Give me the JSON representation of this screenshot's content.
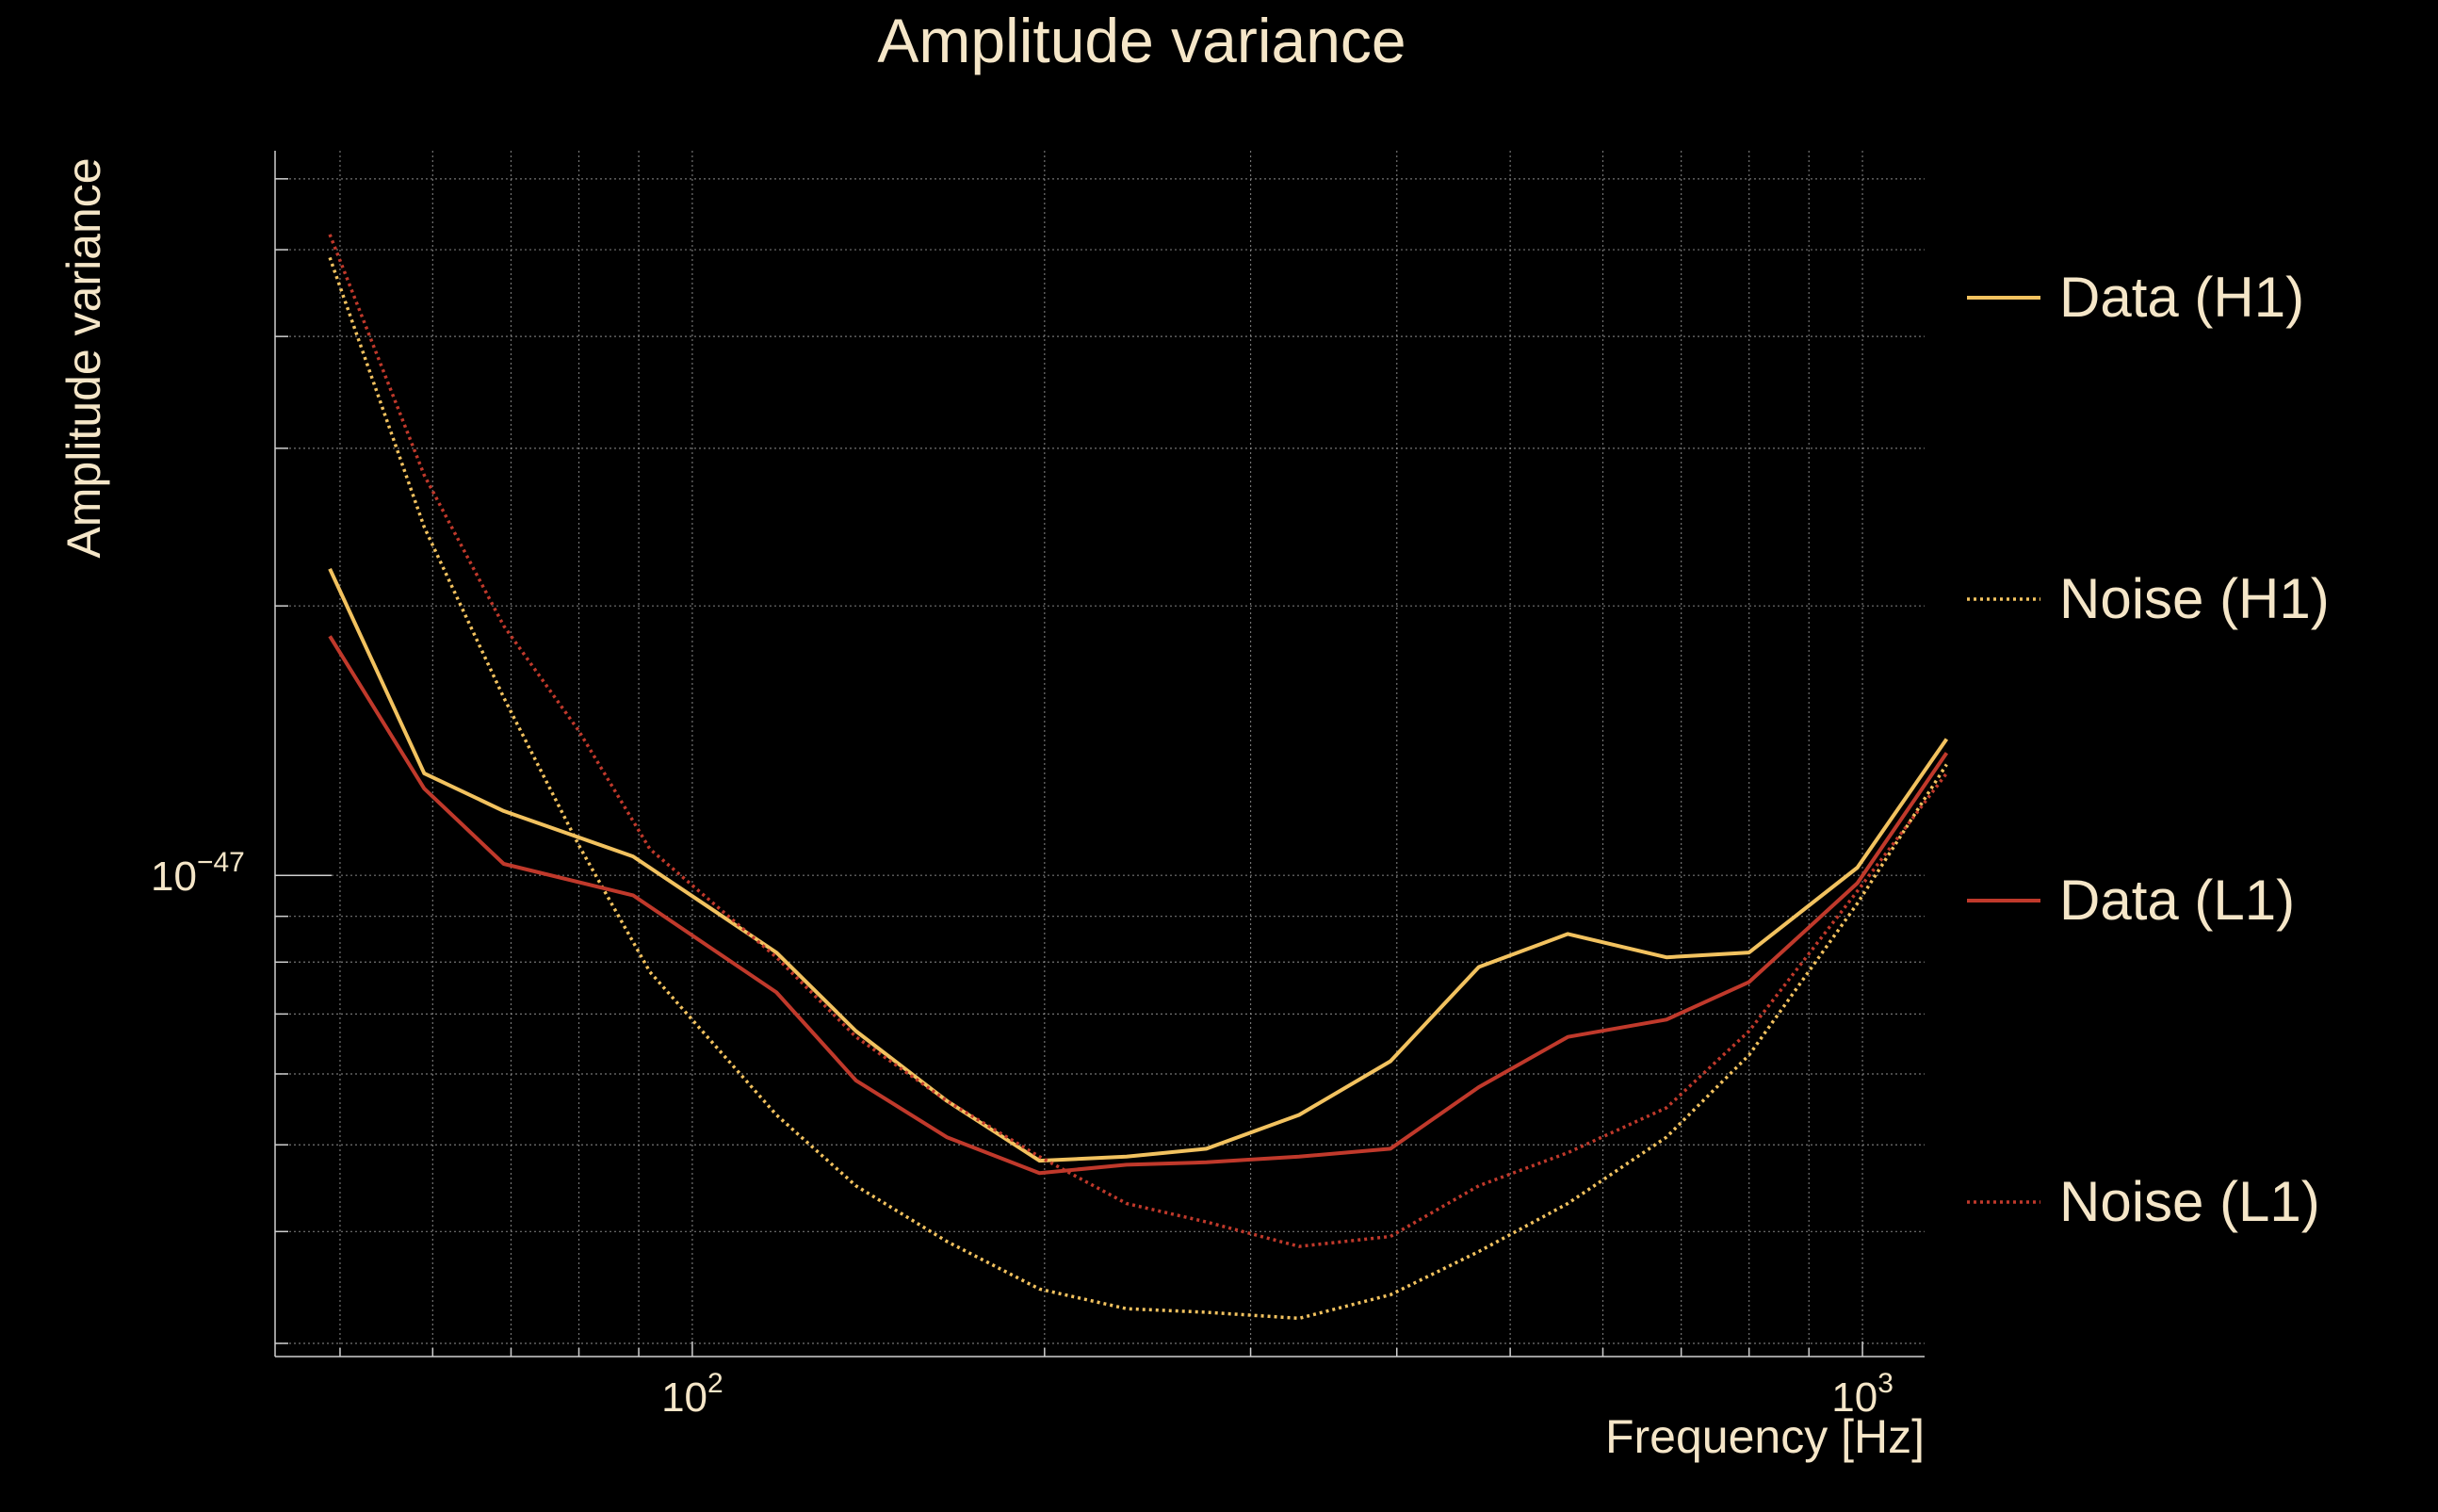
{
  "chart_data": {
    "type": "line",
    "title": "Amplitude variance",
    "xlabel": "Frequency [Hz]",
    "ylabel": "Amplitude variance",
    "xscale": "log",
    "yscale": "log",
    "xlim": [
      44,
      1130
    ],
    "ylim": [
      2.9e-48,
      6.45e-47
    ],
    "x_ticks": [
      {
        "value": 100,
        "label_base": "10",
        "label_exp": "2"
      },
      {
        "value": 1000,
        "label_base": "10",
        "label_exp": "3"
      }
    ],
    "y_ticks": [
      {
        "value": 1e-47,
        "label_base": "10",
        "label_exp": "−47"
      }
    ],
    "grid": true,
    "legend_position": "right",
    "series": [
      {
        "name": "Data (H1)",
        "color": "#f2c25f",
        "style": "solid",
        "x": [
          49,
          59,
          69,
          89,
          118,
          138,
          165,
          198,
          235,
          275,
          330,
          395,
          470,
          560,
          680,
          800,
          990,
          1180
        ],
        "y": [
          2.2e-47,
          1.3e-47,
          1.18e-47,
          1.05e-47,
          8.2e-48,
          6.7e-48,
          5.6e-48,
          4.8e-48,
          4.85e-48,
          4.95e-48,
          5.4e-48,
          6.2e-48,
          7.9e-48,
          8.6e-48,
          8.1e-48,
          8.2e-48,
          1.02e-47,
          1.42e-47
        ]
      },
      {
        "name": "Noise (H1)",
        "color": "#f2c25f",
        "style": "dotted",
        "x": [
          49,
          59,
          69,
          80,
          92,
          118,
          138,
          165,
          198,
          235,
          275,
          330,
          395,
          470,
          560,
          680,
          800,
          990,
          1180
        ],
        "y": [
          4.9e-47,
          2.45e-47,
          1.58e-47,
          1.08e-47,
          7.8e-48,
          5.4e-48,
          4.5e-48,
          3.9e-48,
          3.45e-48,
          3.28e-48,
          3.25e-48,
          3.2e-48,
          3.4e-48,
          3.8e-48,
          4.3e-48,
          5.1e-48,
          6.3e-48,
          9.3e-48,
          1.33e-47
        ]
      },
      {
        "name": "Data (L1)",
        "color": "#c0392b",
        "style": "solid",
        "x": [
          49,
          59,
          69,
          89,
          118,
          138,
          165,
          198,
          235,
          275,
          330,
          395,
          470,
          560,
          680,
          800,
          990,
          1180
        ],
        "y": [
          1.85e-47,
          1.25e-47,
          1.03e-47,
          9.5e-48,
          7.4e-48,
          5.9e-48,
          5.1e-48,
          4.65e-48,
          4.75e-48,
          4.78e-48,
          4.85e-48,
          4.95e-48,
          5.8e-48,
          6.6e-48,
          6.9e-48,
          7.6e-48,
          9.8e-48,
          1.37e-47
        ]
      },
      {
        "name": "Noise (L1)",
        "color": "#c0392b",
        "style": "dotted",
        "x": [
          49,
          59,
          69,
          80,
          92,
          118,
          138,
          165,
          198,
          235,
          275,
          330,
          395,
          470,
          560,
          680,
          800,
          990,
          1180
        ],
        "y": [
          5.2e-47,
          2.8e-47,
          1.9e-47,
          1.45e-47,
          1.07e-47,
          8.1e-48,
          6.6e-48,
          5.6e-48,
          4.85e-48,
          4.3e-48,
          4.1e-48,
          3.85e-48,
          3.95e-48,
          4.5e-48,
          4.9e-48,
          5.5e-48,
          6.7e-48,
          9.6e-48,
          1.3e-47
        ]
      }
    ]
  }
}
